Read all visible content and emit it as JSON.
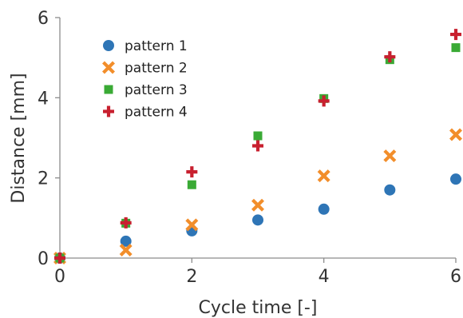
{
  "chart_data": {
    "type": "scatter",
    "title": "",
    "xlabel": "Cycle time [-]",
    "ylabel": "Distance [mm]",
    "xlim": [
      0,
      6
    ],
    "ylim": [
      0,
      6
    ],
    "x_ticks": [
      "0",
      "2",
      "4",
      "6"
    ],
    "y_ticks": [
      "0",
      "2",
      "4",
      "6"
    ],
    "grid": false,
    "legend_position": "top-left",
    "series": [
      {
        "name": "pattern 1",
        "marker": "circle",
        "color": "#2e75b6",
        "x": [
          0,
          1,
          2,
          3,
          4,
          5,
          6
        ],
        "y": [
          0,
          0.42,
          0.68,
          0.95,
          1.22,
          1.7,
          1.97
        ]
      },
      {
        "name": "pattern 2",
        "marker": "x",
        "color": "#f28e2b",
        "x": [
          0,
          1,
          2,
          3,
          4,
          5,
          6
        ],
        "y": [
          0,
          0.2,
          0.83,
          1.32,
          2.05,
          2.55,
          3.08
        ]
      },
      {
        "name": "pattern 3",
        "marker": "square",
        "color": "#3aaa35",
        "x": [
          0,
          1,
          2,
          3,
          4,
          5,
          6
        ],
        "y": [
          0,
          0.87,
          1.83,
          3.05,
          3.98,
          4.95,
          5.25
        ]
      },
      {
        "name": "pattern 4",
        "marker": "plus",
        "color": "#c8202f",
        "x": [
          0,
          1,
          2,
          3,
          4,
          5,
          6
        ],
        "y": [
          0,
          0.88,
          2.15,
          2.8,
          3.92,
          5.02,
          5.58
        ]
      }
    ]
  }
}
